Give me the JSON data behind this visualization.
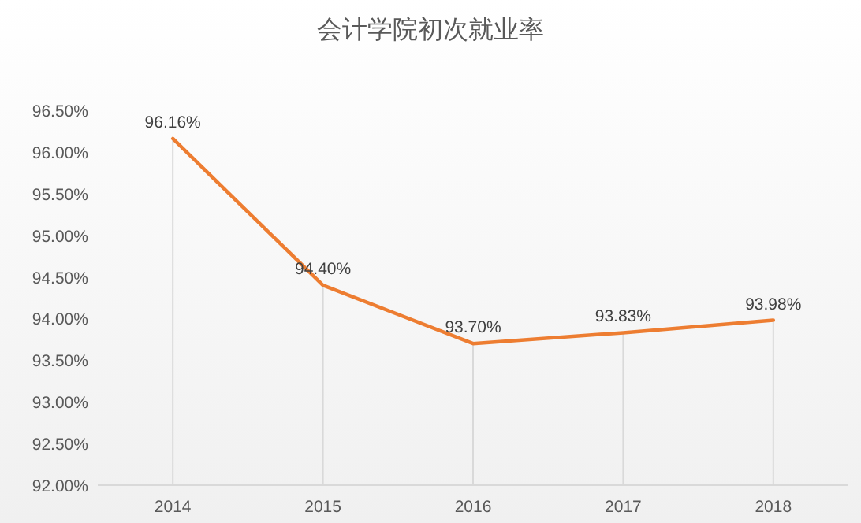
{
  "chart_data": {
    "type": "line",
    "title": "会计学院初次就业率",
    "categories": [
      "2014",
      "2015",
      "2016",
      "2017",
      "2018"
    ],
    "series": [
      {
        "color": "#ed7d31",
        "values": [
          96.16,
          94.4,
          93.7,
          93.83,
          93.98
        ],
        "value_labels": [
          "96.16%",
          "94.40%",
          "93.70%",
          "93.83%",
          "93.98%"
        ]
      }
    ],
    "ylim": [
      92,
      96.5
    ],
    "yticks": [
      {
        "value": 92,
        "label": "92.00%"
      },
      {
        "value": 92.5,
        "label": "92.50%"
      },
      {
        "value": 93,
        "label": "93.00%"
      },
      {
        "value": 93.5,
        "label": "93.50%"
      },
      {
        "value": 94,
        "label": "94.00%"
      },
      {
        "value": 94.5,
        "label": "94.50%"
      },
      {
        "value": 95,
        "label": "95.00%"
      },
      {
        "value": 95.5,
        "label": "95.50%"
      },
      {
        "value": 96,
        "label": "96.00%"
      },
      {
        "value": 96.5,
        "label": "96.50%"
      }
    ],
    "grid": "x",
    "marker": "none",
    "line_style": "solid"
  }
}
